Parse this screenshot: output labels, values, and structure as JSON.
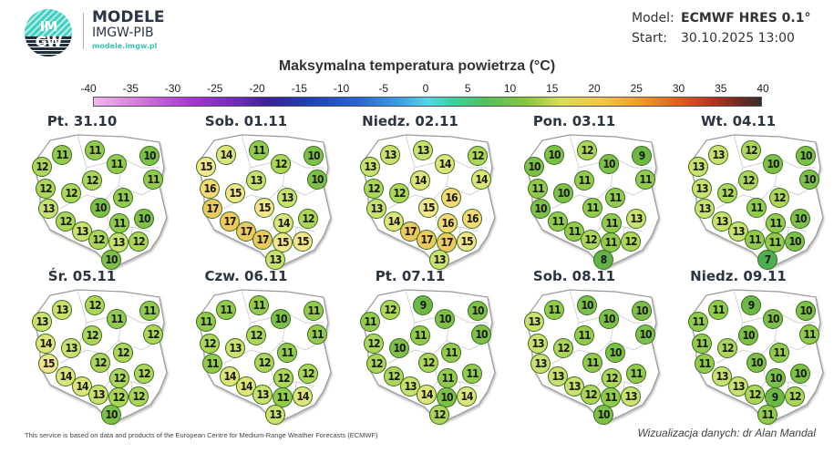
{
  "header": {
    "logo_text_top": "IM",
    "logo_text_bottom": "GW",
    "brand_title": "MODELE",
    "brand_subtitle": "IMGW-PIB",
    "brand_url": "modele.imgw.pl",
    "model_label": "Model:",
    "model_value": "ECMWF HRES 0.1°",
    "start_label": "Start:",
    "start_value": "30.10.2025 13:00"
  },
  "title": "Maksymalna temperatura powietrza (°C)",
  "scale": {
    "ticks": [
      "-40",
      "-35",
      "-30",
      "-25",
      "-20",
      "-15",
      "-10",
      "-5",
      "0",
      "5",
      "10",
      "15",
      "20",
      "25",
      "30",
      "35",
      "40"
    ]
  },
  "colors": {
    "7": "#4caf50",
    "8": "#62b347",
    "9": "#6cb845",
    "10": "#7dc046",
    "11": "#92cb4c",
    "12": "#acd658",
    "13": "#c9e26e",
    "14": "#dde578",
    "15": "#f1e68a",
    "16": "#f3da72",
    "17": "#edca5e"
  },
  "days": [
    {
      "label": "Pt. 31.10",
      "values": [
        11,
        11,
        10,
        12,
        11,
        11,
        12,
        12,
        12,
        11,
        10,
        13,
        12,
        10,
        11,
        13,
        12,
        13,
        12,
        10
      ]
    },
    {
      "label": "Sob. 01.11",
      "values": [
        14,
        11,
        10,
        15,
        12,
        10,
        13,
        16,
        15,
        13,
        15,
        17,
        17,
        12,
        14,
        17,
        17,
        15,
        15,
        13
      ]
    },
    {
      "label": "Niedz. 02.11",
      "values": [
        13,
        13,
        12,
        13,
        14,
        14,
        14,
        12,
        12,
        16,
        15,
        13,
        14,
        16,
        16,
        17,
        17,
        17,
        15,
        13
      ]
    },
    {
      "label": "Pon. 03.11",
      "values": [
        10,
        12,
        9,
        10,
        10,
        11,
        11,
        11,
        10,
        11,
        11,
        10,
        11,
        13,
        11,
        11,
        12,
        11,
        12,
        8
      ]
    },
    {
      "label": "Wt. 04.11",
      "values": [
        13,
        12,
        10,
        13,
        10,
        10,
        12,
        13,
        12,
        12,
        11,
        13,
        13,
        10,
        11,
        13,
        11,
        11,
        10,
        7
      ]
    },
    {
      "label": "Śr. 05.11",
      "values": [
        13,
        12,
        11,
        13,
        11,
        12,
        12,
        14,
        13,
        12,
        12,
        15,
        14,
        12,
        12,
        14,
        13,
        12,
        12,
        10
      ]
    },
    {
      "label": "Czw. 06.11",
      "values": [
        11,
        11,
        11,
        11,
        10,
        11,
        12,
        12,
        13,
        11,
        12,
        11,
        14,
        12,
        12,
        14,
        13,
        11,
        14,
        13
      ]
    },
    {
      "label": "Pt. 07.11",
      "values": [
        12,
        9,
        10,
        11,
        10,
        10,
        11,
        12,
        10,
        11,
        12,
        12,
        12,
        11,
        11,
        13,
        14,
        10,
        14,
        12
      ]
    },
    {
      "label": "Sob. 08.11",
      "values": [
        11,
        10,
        10,
        13,
        10,
        10,
        11,
        13,
        12,
        10,
        11,
        13,
        13,
        11,
        12,
        13,
        12,
        11,
        13,
        10
      ]
    },
    {
      "label": "Niedz. 09.11",
      "values": [
        11,
        9,
        10,
        11,
        10,
        11,
        10,
        11,
        12,
        11,
        10,
        11,
        13,
        10,
        10,
        13,
        12,
        9,
        12,
        11
      ]
    }
  ],
  "footer": {
    "attribution": "This service is based on data and products of the European Centre for Medium-Range Weather Forecasts (ECMWF)",
    "credit": "Wizualizacja danych: dr Alan Mandal"
  }
}
